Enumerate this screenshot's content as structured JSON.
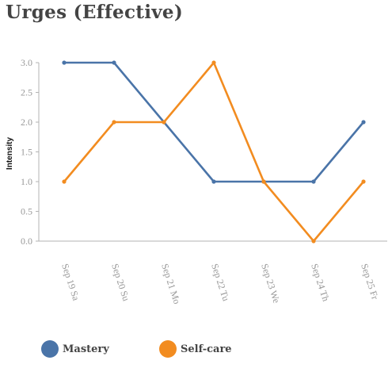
{
  "chart_data": {
    "type": "line",
    "title": "Urges (Effective)",
    "xlabel": "",
    "ylabel": "Intensity",
    "categories": [
      "Sep 19 Sa",
      "Sep 20 Su",
      "Sep 21 Mo",
      "Sep 22 Tu",
      "Sep 23 We",
      "Sep 24 Th",
      "Sep 25 Fr"
    ],
    "yticks": [
      "0.0",
      "0.5",
      "1.0",
      "1.5",
      "2.0",
      "2.5",
      "3.0"
    ],
    "ylim": [
      0,
      3
    ],
    "grid": false,
    "legend_position": "bottom",
    "series": [
      {
        "name": "Mastery",
        "color": "#4a74a8",
        "values": [
          3,
          3,
          2,
          1,
          1,
          1,
          2
        ]
      },
      {
        "name": "Self-care",
        "color": "#f28c20",
        "values": [
          1,
          2,
          2,
          3,
          1,
          0,
          1
        ]
      }
    ]
  }
}
